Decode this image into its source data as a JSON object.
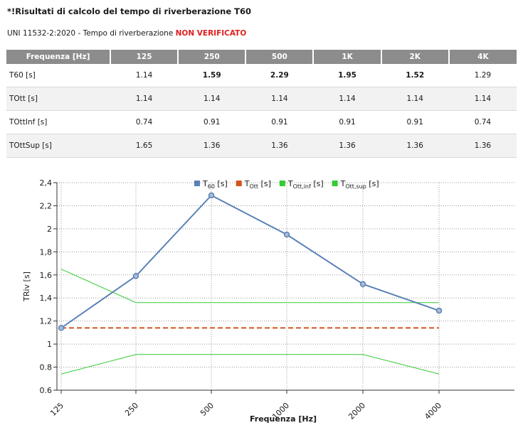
{
  "heading": "*!Risultati di calcolo del tempo di riverberazione T60",
  "norm_prefix": "UNI 11532-2:2020 - Tempo di riverberazione ",
  "norm_status": "NON VERIFICATO",
  "table": {
    "headers": [
      "Frequenza [Hz]",
      "125",
      "250",
      "500",
      "1K",
      "2K",
      "4K"
    ],
    "rows": [
      {
        "label": "T60 [s]",
        "values": [
          "1.14",
          "1.59",
          "2.29",
          "1.95",
          "1.52",
          "1.29"
        ],
        "bold": [
          false,
          true,
          true,
          true,
          true,
          false
        ]
      },
      {
        "label": "TOtt [s]",
        "values": [
          "1.14",
          "1.14",
          "1.14",
          "1.14",
          "1.14",
          "1.14"
        ],
        "bold": [
          false,
          false,
          false,
          false,
          false,
          false
        ]
      },
      {
        "label": "TOttInf [s]",
        "values": [
          "0.74",
          "0.91",
          "0.91",
          "0.91",
          "0.91",
          "0.74"
        ],
        "bold": [
          false,
          false,
          false,
          false,
          false,
          false
        ]
      },
      {
        "label": "TOttSup [s]",
        "values": [
          "1.65",
          "1.36",
          "1.36",
          "1.36",
          "1.36",
          "1.36"
        ],
        "bold": [
          false,
          false,
          false,
          false,
          false,
          false
        ]
      }
    ]
  },
  "chart_data": {
    "type": "line",
    "categories": [
      "125",
      "250",
      "500",
      "1000",
      "2000",
      "4000"
    ],
    "xlabel": "Frequenza [Hz]",
    "ylabel": "TRiv [s]",
    "ylim": [
      0.6,
      2.4
    ],
    "yticks": [
      "0.6",
      "0.8",
      "1",
      "1,2",
      "1,4",
      "1,6",
      "1,8",
      "2",
      "2,2",
      "2,4"
    ],
    "grid": true,
    "legend_position": "top",
    "series": [
      {
        "name": "T60 [s]",
        "base": "T",
        "sub": "60",
        "suffix": " [s]",
        "values": [
          1.14,
          1.59,
          2.29,
          1.95,
          1.52,
          1.29
        ],
        "color": "#5b82b6",
        "style": "line-markers"
      },
      {
        "name": "TOtt [s]",
        "base": "T",
        "sub": "Ott",
        "suffix": " [s]",
        "values": [
          1.14,
          1.14,
          1.14,
          1.14,
          1.14,
          1.14
        ],
        "color": "#d2541e",
        "style": "dashed"
      },
      {
        "name": "TOtt,inf [s]",
        "base": "T",
        "sub": "Ott,inf",
        "suffix": " [s]",
        "values": [
          0.74,
          0.91,
          0.91,
          0.91,
          0.91,
          0.74
        ],
        "color": "#33cc33",
        "style": "line"
      },
      {
        "name": "TOtt,sup [s]",
        "base": "T",
        "sub": "Ott,sup",
        "suffix": " [s]",
        "values": [
          1.65,
          1.36,
          1.36,
          1.36,
          1.36,
          1.36
        ],
        "color": "#33cc33",
        "style": "line"
      }
    ]
  }
}
